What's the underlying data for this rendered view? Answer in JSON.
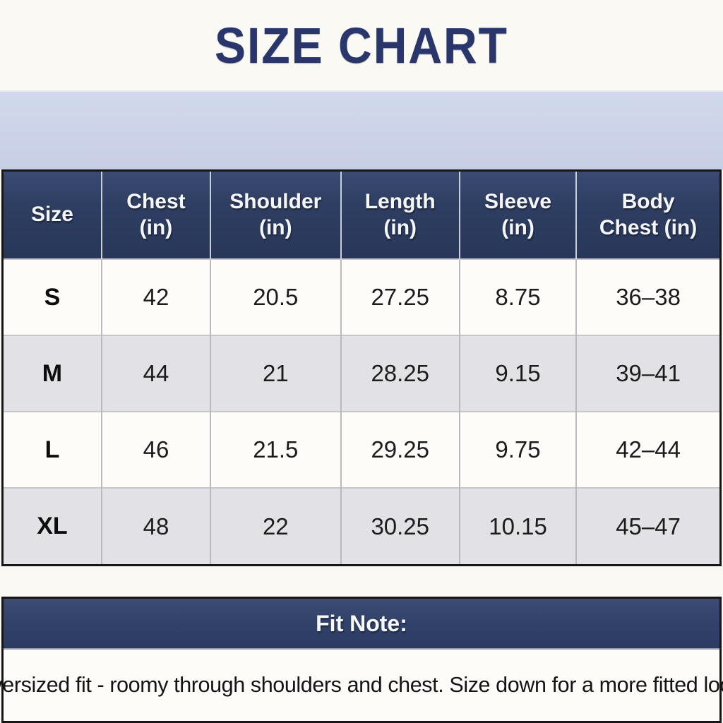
{
  "title": "SIZE CHART",
  "table": {
    "columns": [
      {
        "lines": [
          "Size"
        ]
      },
      {
        "lines": [
          "Chest",
          "(in)"
        ]
      },
      {
        "lines": [
          "Shoulder",
          "(in)"
        ]
      },
      {
        "lines": [
          "Length",
          "(in)"
        ]
      },
      {
        "lines": [
          "Sleeve",
          "(in)"
        ]
      },
      {
        "lines": [
          "Body",
          "Chest (in)"
        ]
      }
    ],
    "rows": [
      {
        "size": "S",
        "cells": [
          "42",
          "20.5",
          "27.25",
          "8.75",
          "36–38"
        ]
      },
      {
        "size": "M",
        "cells": [
          "44",
          "21",
          "28.25",
          "9.15",
          "39–41"
        ]
      },
      {
        "size": "L",
        "cells": [
          "46",
          "21.5",
          "29.25",
          "9.75",
          "42–44"
        ]
      },
      {
        "size": "XL",
        "cells": [
          "48",
          "22",
          "30.25",
          "10.15",
          "45–47"
        ]
      }
    ]
  },
  "fit_note": {
    "heading": "Fit Note:",
    "text": "Oversized fit - roomy through shoulders and chest. Size down for a more fitted look."
  },
  "colors": {
    "page_bg": "#faf9f4",
    "title_navy": "#28366c",
    "band": "#cdd4e9",
    "header_navy": "#2e3e62",
    "fitbar_navy": "#32426a",
    "row_white": "#fdfcf8",
    "row_alt": "#e2e2e6",
    "border_dark": "#161616"
  }
}
